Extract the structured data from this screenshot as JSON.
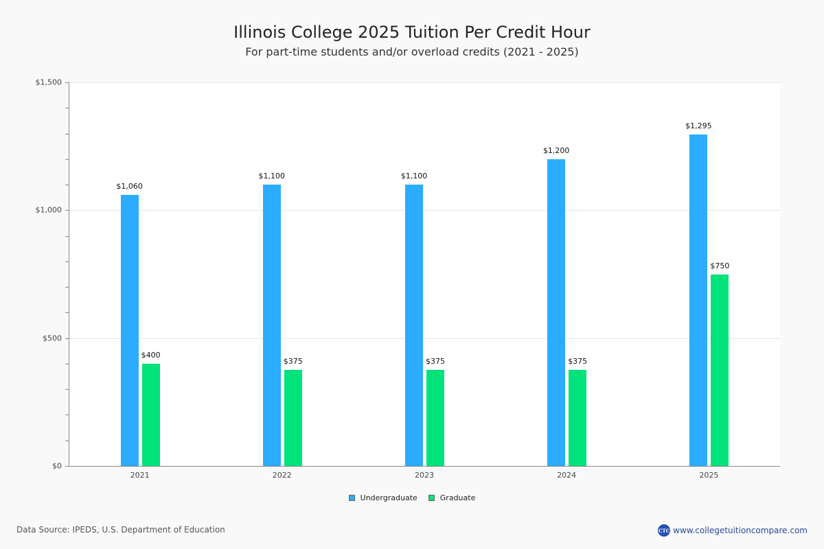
{
  "header": {
    "title": "Illinois College 2025 Tuition Per Credit Hour",
    "subtitle": "For part-time students and/or overload credits (2021 - 2025)"
  },
  "colors": {
    "undergraduate": "#2bacff",
    "graduate": "#00e27a"
  },
  "y_axis": {
    "ticks": [
      "$0",
      "$500",
      "$1,000",
      "$1,500"
    ]
  },
  "legend": {
    "items": [
      {
        "label": "Undergraduate",
        "color": "#2bacff"
      },
      {
        "label": "Graduate",
        "color": "#00e27a"
      }
    ]
  },
  "footer": {
    "source": "Data Source: IPEDS, U.S. Department of Education",
    "brand_logo": "CTC",
    "brand_url": "www.collegetuitioncompare.com"
  },
  "chart_data": {
    "type": "bar",
    "title": "Illinois College 2025 Tuition Per Credit Hour",
    "subtitle": "For part-time students and/or overload credits (2021 - 2025)",
    "xlabel": "",
    "ylabel": "",
    "categories": [
      "2021",
      "2022",
      "2023",
      "2024",
      "2025"
    ],
    "series": [
      {
        "name": "Undergraduate",
        "color": "#2bacff",
        "values": [
          1060,
          1100,
          1100,
          1200,
          1295
        ],
        "labels": [
          "$1,060",
          "$1,100",
          "$1,100",
          "$1,200",
          "$1,295"
        ]
      },
      {
        "name": "Graduate",
        "color": "#00e27a",
        "values": [
          400,
          375,
          375,
          375,
          750
        ],
        "labels": [
          "$400",
          "$375",
          "$375",
          "$375",
          "$750"
        ]
      }
    ],
    "ylim": [
      0,
      1500
    ],
    "yticks": [
      0,
      500,
      1000,
      1500
    ],
    "ytick_labels": [
      "$0",
      "$500",
      "$1,000",
      "$1,500"
    ],
    "grid": true,
    "legend_position": "bottom"
  }
}
